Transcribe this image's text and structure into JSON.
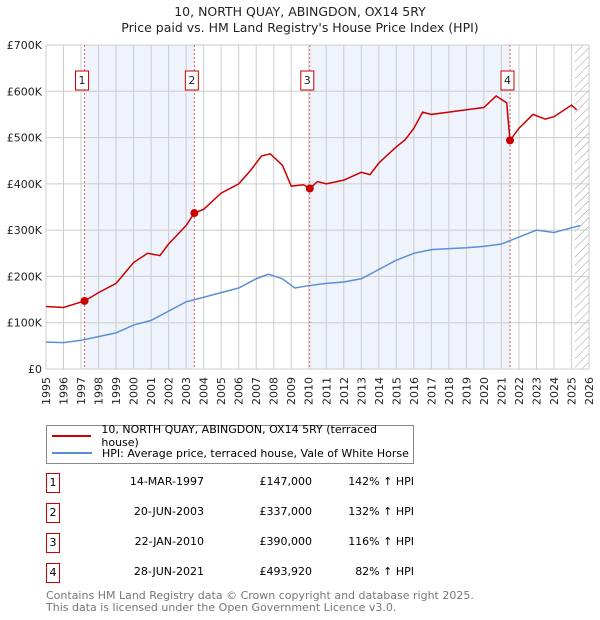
{
  "chart_data": {
    "type": "line",
    "title": "10, NORTH QUAY, ABINGDON, OX14 5RY",
    "subtitle": "Price paid vs. HM Land Registry's House Price Index (HPI)",
    "xlim": [
      1995,
      2026
    ],
    "ylim": [
      0,
      700000
    ],
    "yticks": [
      {
        "v": 0,
        "label": "£0"
      },
      {
        "v": 100000,
        "label": "£100K"
      },
      {
        "v": 200000,
        "label": "£200K"
      },
      {
        "v": 300000,
        "label": "£300K"
      },
      {
        "v": 400000,
        "label": "£400K"
      },
      {
        "v": 500000,
        "label": "£500K"
      },
      {
        "v": 600000,
        "label": "£600K"
      },
      {
        "v": 700000,
        "label": "£700K"
      }
    ],
    "xticks": [
      "1995",
      "1996",
      "1997",
      "1998",
      "1999",
      "2000",
      "2001",
      "2002",
      "2003",
      "2004",
      "2005",
      "2006",
      "2007",
      "2008",
      "2009",
      "2010",
      "2011",
      "2012",
      "2013",
      "2014",
      "2015",
      "2016",
      "2017",
      "2018",
      "2019",
      "2020",
      "2021",
      "2022",
      "2023",
      "2024",
      "2025",
      "2026"
    ],
    "grid": true,
    "shaded": [
      [
        1997.2,
        2003.47
      ],
      [
        2010.06,
        2021.49
      ]
    ],
    "hatched_from": 2025.2,
    "series": [
      {
        "name": "10, NORTH QUAY, ABINGDON, OX14 5RY (terraced house)",
        "color": "#cc0000",
        "x": [
          1995,
          1996,
          1997.2,
          1998,
          1999,
          2000,
          2000.8,
          2001.5,
          2002,
          2003,
          2003.47,
          2004,
          2005,
          2006,
          2006.7,
          2007.3,
          2007.8,
          2008.5,
          2009,
          2009.7,
          2010.06,
          2010.5,
          2011,
          2012,
          2013,
          2013.5,
          2014,
          2015,
          2015.5,
          2016,
          2016.5,
          2017,
          2018,
          2019,
          2020,
          2020.7,
          2021.3,
          2021.49,
          2022,
          2022.8,
          2023.5,
          2024,
          2025,
          2025.3
        ],
        "y": [
          135000,
          133000,
          147000,
          165000,
          185000,
          230000,
          250000,
          245000,
          270000,
          310000,
          337000,
          345000,
          380000,
          400000,
          430000,
          460000,
          465000,
          440000,
          395000,
          398000,
          390000,
          405000,
          400000,
          408000,
          425000,
          420000,
          445000,
          480000,
          495000,
          520000,
          555000,
          550000,
          555000,
          560000,
          565000,
          590000,
          575000,
          493920,
          520000,
          550000,
          540000,
          545000,
          570000,
          560000
        ]
      },
      {
        "name": "HPI: Average price, terraced house, Vale of White Horse",
        "color": "#5b8fd4",
        "x": [
          1995,
          1996,
          1997,
          1998,
          1999,
          2000,
          2001,
          2002,
          2003,
          2004,
          2005,
          2006,
          2007,
          2007.7,
          2008.5,
          2009.2,
          2010,
          2011,
          2012,
          2013,
          2014,
          2015,
          2016,
          2017,
          2018,
          2019,
          2020,
          2021,
          2022,
          2023,
          2024,
          2025,
          2025.5
        ],
        "y": [
          58000,
          57000,
          62000,
          70000,
          78000,
          95000,
          105000,
          125000,
          145000,
          155000,
          165000,
          175000,
          195000,
          205000,
          195000,
          175000,
          180000,
          185000,
          188000,
          195000,
          215000,
          235000,
          250000,
          258000,
          260000,
          262000,
          265000,
          270000,
          285000,
          300000,
          295000,
          305000,
          310000
        ]
      }
    ],
    "sales": [
      {
        "n": "1",
        "x": 1997.2,
        "y": 147000,
        "date": "14-MAR-1997",
        "price": "£147,000",
        "hpi": "142% ↑ HPI"
      },
      {
        "n": "2",
        "x": 2003.47,
        "y": 337000,
        "date": "20-JUN-2003",
        "price": "£337,000",
        "hpi": "132% ↑ HPI"
      },
      {
        "n": "3",
        "x": 2010.06,
        "y": 390000,
        "date": "22-JAN-2010",
        "price": "£390,000",
        "hpi": "116% ↑ HPI"
      },
      {
        "n": "4",
        "x": 2021.49,
        "y": 493920,
        "date": "28-JUN-2021",
        "price": "£493,920",
        "hpi": "82% ↑ HPI"
      }
    ]
  },
  "footer": {
    "line1": "Contains HM Land Registry data © Crown copyright and database right 2025.",
    "line2": "This data is licensed under the Open Government Licence v3.0."
  }
}
